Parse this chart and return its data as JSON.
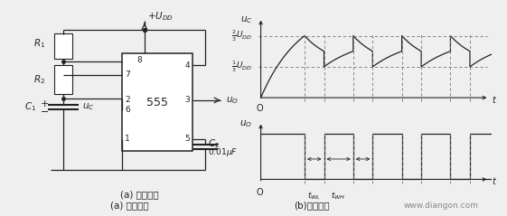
{
  "bg_color": "#efefef",
  "fig_width": 5.61,
  "fig_height": 2.39,
  "dpi": 100,
  "caption_a": "(a) 电路结构",
  "caption_b": "(b)工作波形",
  "watermark": "www.diangon.com",
  "line_color": "#222222",
  "dashed_color": "#777777",
  "two_thirds_val": 2.4,
  "one_third_val": 1.2,
  "uc_ylim": [
    -0.4,
    3.2
  ],
  "uo_ylim": [
    -0.6,
    2.5
  ],
  "t1": 1.8,
  "tWL": 0.8,
  "tWH": 1.2,
  "high_val": 1.8,
  "low_val": 0.0
}
